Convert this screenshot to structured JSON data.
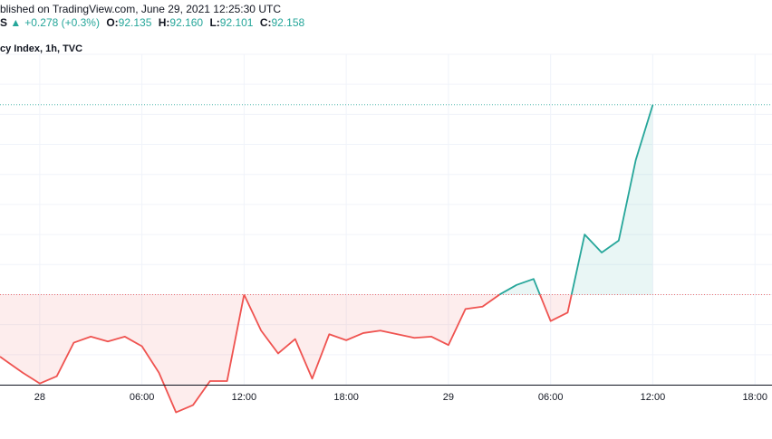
{
  "header": {
    "published": "blished on TradingView.com, June 29, 2021 12:25:30 UTC",
    "symbol_fragment": "S",
    "change_arrow": "▲",
    "change": "+0.278 (+0.3%)",
    "o_label": "O:",
    "o_value": "92.135",
    "h_label": "H:",
    "h_value": "92.160",
    "l_label": "L:",
    "l_value": "92.101",
    "c_label": "C:",
    "c_value": "92.158",
    "title": "cy Index, 1h, TVC"
  },
  "colors": {
    "up": "#26a69a",
    "down": "#ef5350",
    "up_fill": "rgba(38,166,154,0.10)",
    "down_fill": "rgba(239,83,80,0.10)",
    "grid": "#f0f3fa",
    "axis": "#131722"
  },
  "chart_data": {
    "type": "area",
    "baseline": 92.0,
    "last_value": 92.158,
    "ylim": [
      91.925,
      92.2
    ],
    "x_tick_labels": [
      "28",
      "06:00",
      "12:00",
      "18:00",
      "29",
      "06:00",
      "12:00",
      "18:00"
    ],
    "x_ticks": [
      "2021-06-28 00:00",
      "2021-06-28 06:00",
      "2021-06-28 12:00",
      "2021-06-28 18:00",
      "2021-06-29 00:00",
      "2021-06-29 06:00",
      "2021-06-29 12:00",
      "2021-06-29 18:00"
    ],
    "xlim": [
      "2021-06-27 21:40",
      "2021-06-29 19:00"
    ],
    "x": [
      "2021-06-27 22:00",
      "2021-06-27 23:00",
      "2021-06-28 00:00",
      "2021-06-28 01:00",
      "2021-06-28 02:00",
      "2021-06-28 03:00",
      "2021-06-28 04:00",
      "2021-06-28 05:00",
      "2021-06-28 06:00",
      "2021-06-28 07:00",
      "2021-06-28 08:00",
      "2021-06-28 09:00",
      "2021-06-28 10:00",
      "2021-06-28 11:00",
      "2021-06-28 12:00",
      "2021-06-28 13:00",
      "2021-06-28 14:00",
      "2021-06-28 15:00",
      "2021-06-28 16:00",
      "2021-06-28 17:00",
      "2021-06-28 18:00",
      "2021-06-28 19:00",
      "2021-06-28 20:00",
      "2021-06-28 21:00",
      "2021-06-28 22:00",
      "2021-06-28 23:00",
      "2021-06-29 00:00",
      "2021-06-29 01:00",
      "2021-06-29 02:00",
      "2021-06-29 03:00",
      "2021-06-29 04:00",
      "2021-06-29 05:00",
      "2021-06-29 06:00",
      "2021-06-29 07:00",
      "2021-06-29 08:00",
      "2021-06-29 09:00",
      "2021-06-29 10:00",
      "2021-06-29 11:00",
      "2021-06-29 12:00"
    ],
    "values": [
      91.945,
      91.935,
      91.926,
      91.932,
      91.96,
      91.965,
      91.961,
      91.965,
      91.957,
      91.935,
      91.902,
      91.908,
      91.928,
      91.928,
      92.0,
      91.97,
      91.951,
      91.963,
      91.93,
      91.967,
      91.962,
      91.968,
      91.97,
      91.967,
      91.964,
      91.965,
      91.958,
      91.988,
      91.99,
      92.0,
      92.008,
      92.013,
      91.978,
      91.985,
      92.05,
      92.035,
      92.045,
      92.112,
      92.158
    ]
  }
}
